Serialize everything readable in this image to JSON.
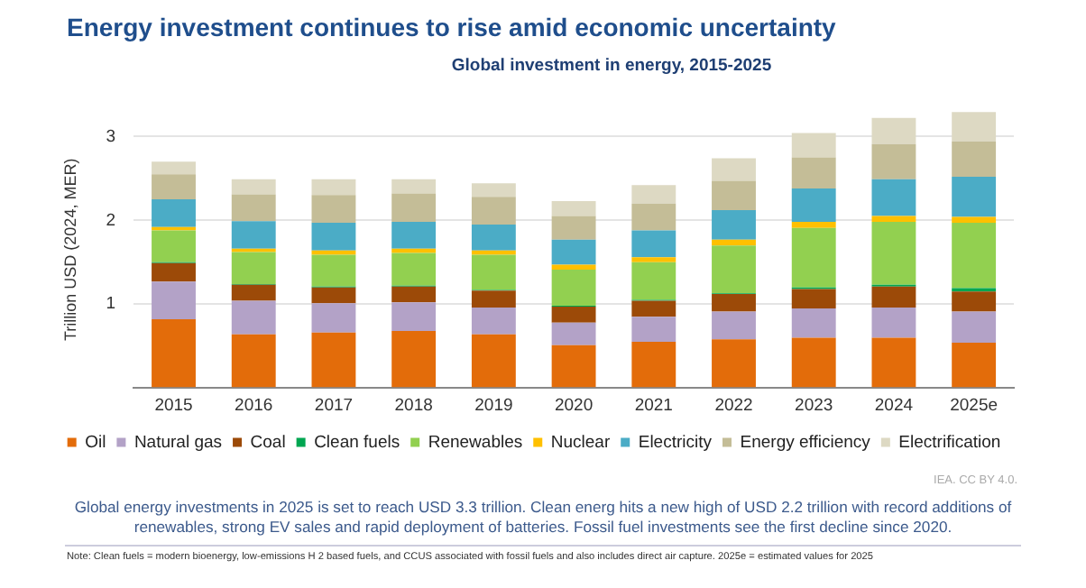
{
  "chart_data": {
    "type": "bar",
    "stacked": true,
    "title": "Energy investment continues to rise amid economic uncertainty",
    "subtitle": "Global investment in energy, 2015-2025",
    "ylabel": "Trillion USD (2024, MER)",
    "categories": [
      "2015",
      "2016",
      "2017",
      "2018",
      "2019",
      "2020",
      "2021",
      "2022",
      "2023",
      "2024",
      "2025e"
    ],
    "series": [
      {
        "name": "Oil",
        "color": "#e36c0a",
        "values": [
          0.82,
          0.64,
          0.66,
          0.68,
          0.64,
          0.51,
          0.55,
          0.58,
          0.6,
          0.6,
          0.54
        ]
      },
      {
        "name": "Natural gas",
        "color": "#b3a2c7",
        "values": [
          0.45,
          0.4,
          0.35,
          0.34,
          0.32,
          0.27,
          0.3,
          0.33,
          0.35,
          0.36,
          0.37
        ]
      },
      {
        "name": "Coal",
        "color": "#9c4a08",
        "values": [
          0.22,
          0.19,
          0.19,
          0.19,
          0.2,
          0.19,
          0.19,
          0.21,
          0.23,
          0.25,
          0.24
        ]
      },
      {
        "name": "Clean fuels",
        "color": "#00a651",
        "values": [
          0.01,
          0.01,
          0.01,
          0.01,
          0.01,
          0.01,
          0.01,
          0.01,
          0.02,
          0.02,
          0.04
        ]
      },
      {
        "name": "Renewables",
        "color": "#92d050",
        "values": [
          0.38,
          0.38,
          0.38,
          0.39,
          0.42,
          0.43,
          0.45,
          0.57,
          0.71,
          0.75,
          0.78
        ]
      },
      {
        "name": "Nuclear",
        "color": "#ffc000",
        "values": [
          0.04,
          0.04,
          0.05,
          0.05,
          0.05,
          0.06,
          0.06,
          0.07,
          0.07,
          0.07,
          0.07
        ]
      },
      {
        "name": "Electricity",
        "color": "#4bacc6",
        "values": [
          0.33,
          0.33,
          0.33,
          0.32,
          0.31,
          0.3,
          0.32,
          0.35,
          0.4,
          0.44,
          0.48
        ]
      },
      {
        "name": "Energy efficiency",
        "color": "#c4bd97",
        "values": [
          0.3,
          0.32,
          0.33,
          0.34,
          0.33,
          0.28,
          0.32,
          0.35,
          0.37,
          0.42,
          0.42
        ]
      },
      {
        "name": "Electrification",
        "color": "#ddd9c3",
        "values": [
          0.15,
          0.18,
          0.19,
          0.17,
          0.16,
          0.18,
          0.22,
          0.27,
          0.29,
          0.31,
          0.35
        ]
      }
    ],
    "ylim": [
      0,
      3.3
    ],
    "yticks": [
      {
        "value": 0,
        "label": null
      },
      1,
      2,
      3
    ],
    "grid": "y",
    "legend": "bottom",
    "annotations": [
      "IEA. CC BY 4.0.",
      "Global energy investments in 2025 is set to reach USD 3.3 trillion. Clean energ hits a new high of USD 2.2 trillion with record additions of renewables, strong EV sales and rapid deployment of batteries. Fossil fuel investments see the first decline since 2020.",
      "Note: Clean fuels = modern bioenergy, low-emissions H 2 based fuels, and CCUS associated with fossil fuels and also includes direct air capture. 2025e = estimated values for 2025"
    ]
  }
}
